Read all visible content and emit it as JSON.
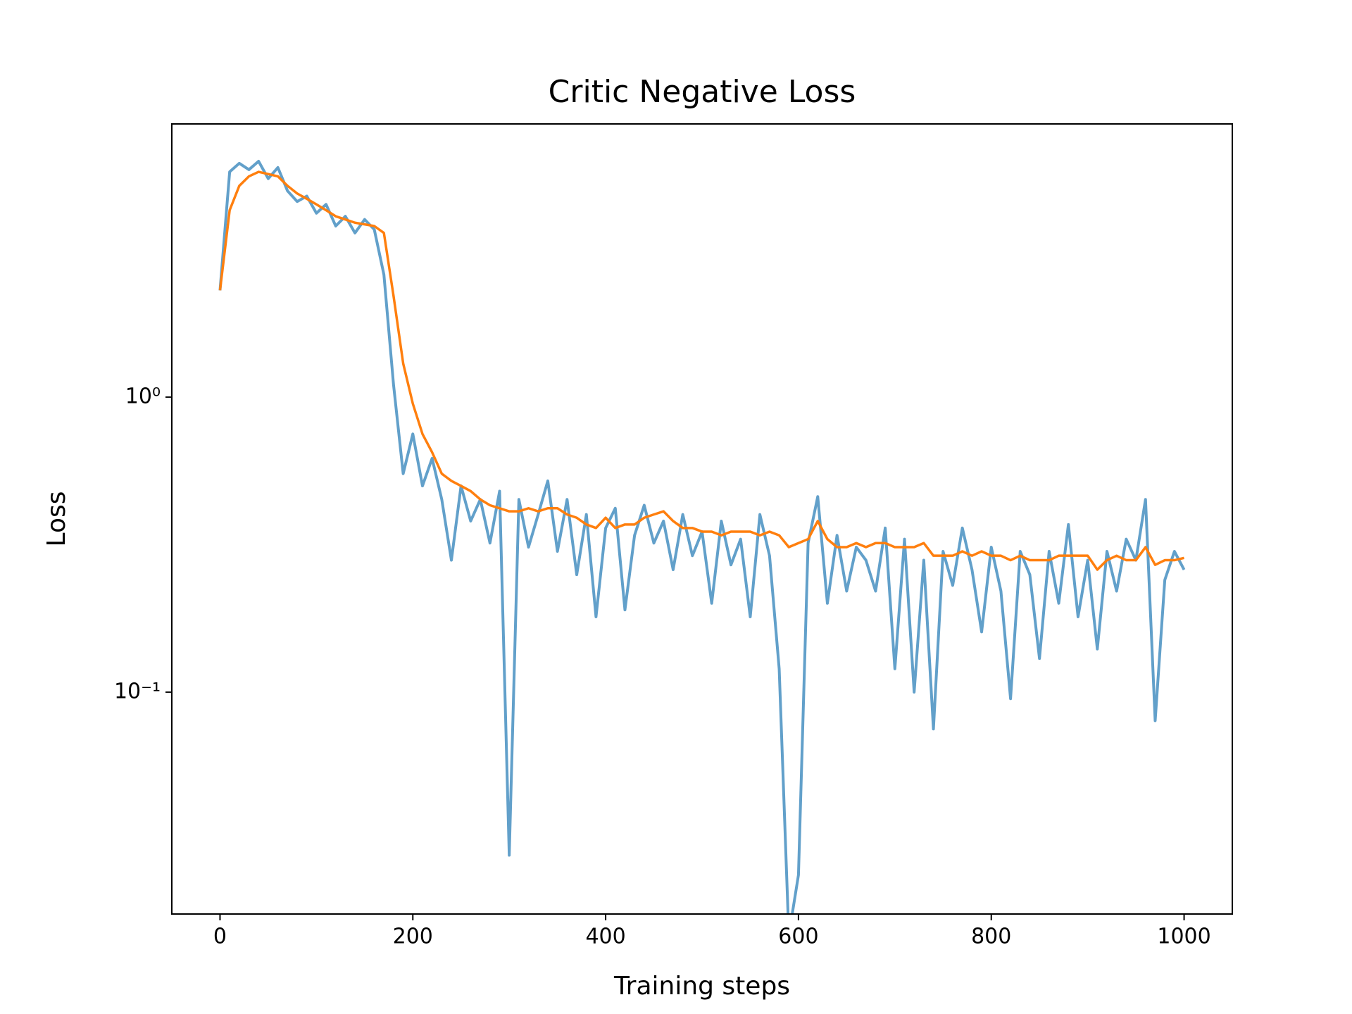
{
  "chart_data": {
    "type": "line",
    "title": "Critic Negative Loss",
    "xlabel": "Training steps",
    "ylabel": "Loss",
    "yscale": "log",
    "grid": false,
    "xlim": [
      -50,
      1050
    ],
    "ylim": [
      0.0177,
      8.43
    ],
    "xticks": [
      0,
      200,
      400,
      600,
      800,
      1000
    ],
    "yticks": [
      {
        "value": 0.1,
        "label": "10⁻¹"
      },
      {
        "value": 1,
        "label": "10⁰"
      }
    ],
    "x": [
      0,
      10,
      20,
      30,
      40,
      50,
      60,
      70,
      80,
      90,
      100,
      110,
      120,
      130,
      140,
      150,
      160,
      170,
      180,
      190,
      200,
      210,
      220,
      230,
      240,
      250,
      260,
      270,
      280,
      290,
      300,
      310,
      320,
      330,
      340,
      350,
      360,
      370,
      380,
      390,
      400,
      410,
      420,
      430,
      440,
      450,
      460,
      470,
      480,
      490,
      500,
      510,
      520,
      530,
      540,
      550,
      560,
      570,
      580,
      590,
      600,
      610,
      620,
      630,
      640,
      650,
      660,
      670,
      680,
      690,
      700,
      710,
      720,
      730,
      740,
      750,
      760,
      770,
      780,
      790,
      800,
      810,
      820,
      830,
      840,
      850,
      860,
      870,
      880,
      890,
      900,
      910,
      920,
      930,
      940,
      950,
      960,
      970,
      980,
      990,
      1000
    ],
    "series": [
      {
        "color": "#1f77b4",
        "values": [
          2.3,
          5.8,
          6.2,
          5.9,
          6.3,
          5.5,
          6.0,
          5.0,
          4.6,
          4.8,
          4.2,
          4.5,
          3.8,
          4.1,
          3.6,
          4.0,
          3.7,
          2.6,
          1.1,
          0.55,
          0.75,
          0.5,
          0.62,
          0.45,
          0.28,
          0.5,
          0.38,
          0.45,
          0.32,
          0.48,
          0.028,
          0.45,
          0.31,
          0.4,
          0.52,
          0.3,
          0.45,
          0.25,
          0.4,
          0.18,
          0.36,
          0.42,
          0.19,
          0.34,
          0.43,
          0.32,
          0.38,
          0.26,
          0.4,
          0.29,
          0.35,
          0.2,
          0.38,
          0.27,
          0.33,
          0.18,
          0.4,
          0.29,
          0.12,
          0.015,
          0.024,
          0.32,
          0.46,
          0.2,
          0.34,
          0.22,
          0.31,
          0.28,
          0.22,
          0.36,
          0.12,
          0.33,
          0.1,
          0.28,
          0.075,
          0.3,
          0.23,
          0.36,
          0.26,
          0.16,
          0.31,
          0.22,
          0.095,
          0.3,
          0.25,
          0.13,
          0.3,
          0.2,
          0.37,
          0.18,
          0.28,
          0.14,
          0.3,
          0.22,
          0.33,
          0.28,
          0.45,
          0.08,
          0.24,
          0.3,
          0.26
        ]
      },
      {
        "color": "#ff7f0e",
        "values": [
          2.3,
          4.3,
          5.2,
          5.6,
          5.8,
          5.7,
          5.6,
          5.2,
          4.9,
          4.7,
          4.5,
          4.3,
          4.1,
          4.0,
          3.9,
          3.85,
          3.8,
          3.6,
          2.2,
          1.3,
          0.95,
          0.75,
          0.65,
          0.55,
          0.52,
          0.5,
          0.48,
          0.45,
          0.43,
          0.42,
          0.41,
          0.41,
          0.42,
          0.41,
          0.42,
          0.42,
          0.4,
          0.39,
          0.37,
          0.36,
          0.39,
          0.36,
          0.37,
          0.37,
          0.39,
          0.4,
          0.41,
          0.38,
          0.36,
          0.36,
          0.35,
          0.35,
          0.34,
          0.35,
          0.35,
          0.35,
          0.34,
          0.35,
          0.34,
          0.31,
          0.32,
          0.33,
          0.38,
          0.33,
          0.31,
          0.31,
          0.32,
          0.31,
          0.32,
          0.32,
          0.31,
          0.31,
          0.31,
          0.32,
          0.29,
          0.29,
          0.29,
          0.3,
          0.29,
          0.3,
          0.29,
          0.29,
          0.28,
          0.29,
          0.28,
          0.28,
          0.28,
          0.29,
          0.29,
          0.29,
          0.29,
          0.26,
          0.28,
          0.29,
          0.28,
          0.28,
          0.31,
          0.27,
          0.28,
          0.28,
          0.285
        ]
      }
    ]
  }
}
